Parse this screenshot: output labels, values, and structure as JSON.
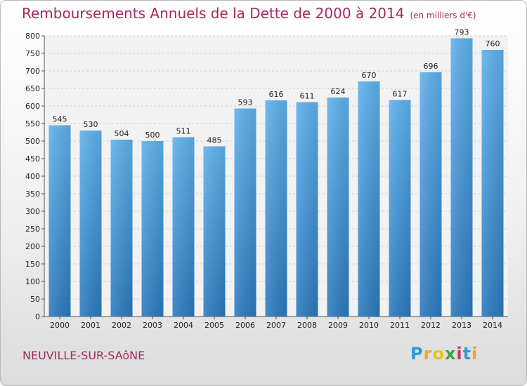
{
  "header": {
    "title": "Remboursements Annuels de la Dette de 2000 à 2014",
    "unit": "(en milliers d'€)"
  },
  "footer": {
    "commune": "NEUVILLE-SUR-SAôNE",
    "logo_letters": [
      "P",
      "r",
      "o",
      "x",
      "i",
      "t",
      "i"
    ],
    "logo_colors": [
      "#2e9ad6",
      "#f5a623",
      "#e8c316",
      "#3aa838",
      "#d62f6f",
      "#2e9ad6",
      "#f5a623"
    ]
  },
  "colors": {
    "bar_light": "#5eb0ec",
    "bar_dark": "#2a79bd",
    "title": "#a7285a",
    "grid": "#cfcfcf"
  },
  "chart_data": {
    "type": "bar",
    "title": "Remboursements Annuels de la Dette de 2000 à 2014",
    "subtitle": "(en milliers d'€)",
    "categories": [
      "2000",
      "2001",
      "2002",
      "2003",
      "2004",
      "2005",
      "2006",
      "2007",
      "2008",
      "2009",
      "2010",
      "2011",
      "2012",
      "2013",
      "2014"
    ],
    "values": [
      545,
      530,
      504,
      500,
      511,
      485,
      593,
      616,
      611,
      624,
      670,
      617,
      696,
      793,
      760
    ],
    "value_labels": [
      "545",
      "530",
      "504",
      "500",
      "511",
      "485",
      "593",
      "616",
      "611",
      "624",
      "670",
      "617",
      "696",
      "793",
      "760"
    ],
    "yticks": [
      "0",
      "50",
      "100",
      "150",
      "200",
      "250",
      "300",
      "350",
      "400",
      "450",
      "500",
      "550",
      "600",
      "650",
      "700",
      "750",
      "800"
    ],
    "ylim": [
      0,
      800
    ],
    "grid": true,
    "legend": "none"
  }
}
